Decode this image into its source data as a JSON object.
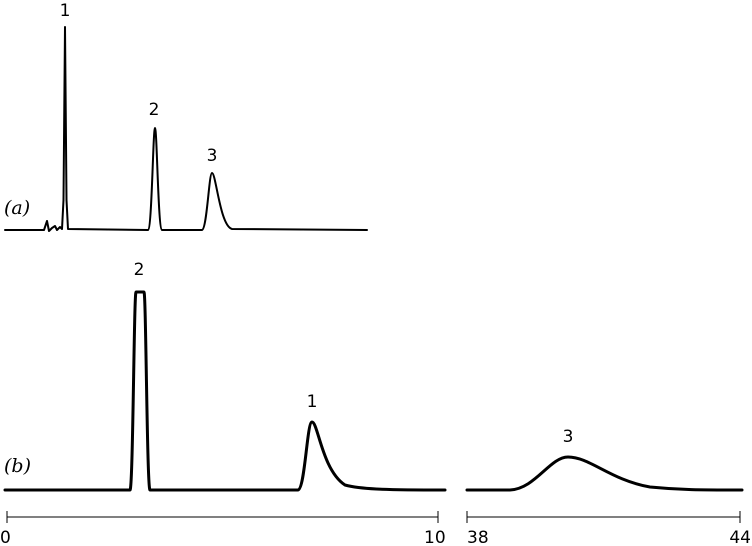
{
  "traces": [
    {
      "label": "(a)",
      "peaks": [
        "1",
        "2",
        "3"
      ]
    },
    {
      "label": "(b)",
      "peaks": [
        "2",
        "1",
        "3"
      ]
    }
  ],
  "axis": {
    "ticks": [
      "0",
      "10",
      "38",
      "44"
    ]
  }
}
